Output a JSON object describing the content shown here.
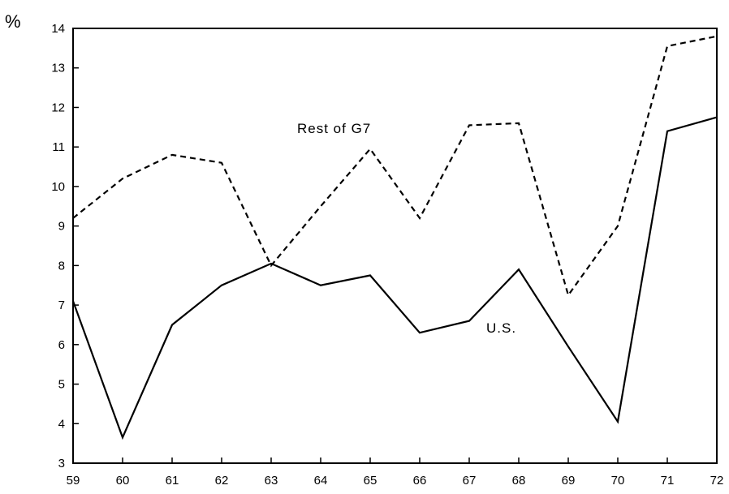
{
  "chart_data": {
    "type": "line",
    "title": "",
    "xlabel": "",
    "ylabel": "%",
    "x": [
      "59",
      "60",
      "61",
      "62",
      "63",
      "64",
      "65",
      "66",
      "67",
      "68",
      "69",
      "70",
      "71",
      "72"
    ],
    "ylim": [
      3,
      14
    ],
    "yticks": [
      "3",
      "4",
      "5",
      "6",
      "7",
      "8",
      "9",
      "10",
      "11",
      "12",
      "13",
      "14"
    ],
    "grid": false,
    "legend": "none",
    "series": [
      {
        "name": "Rest of G7",
        "style": "dashed",
        "color": "#000000",
        "values": [
          9.2,
          10.2,
          10.8,
          10.6,
          8.0,
          9.5,
          10.95,
          9.2,
          11.55,
          11.6,
          7.25,
          9.0,
          13.55,
          13.8
        ]
      },
      {
        "name": "U.S.",
        "style": "solid",
        "color": "#000000",
        "values": [
          7.1,
          3.65,
          6.5,
          7.5,
          8.05,
          7.5,
          7.75,
          6.3,
          6.6,
          7.9,
          5.95,
          4.05,
          11.4,
          11.75
        ]
      }
    ]
  }
}
